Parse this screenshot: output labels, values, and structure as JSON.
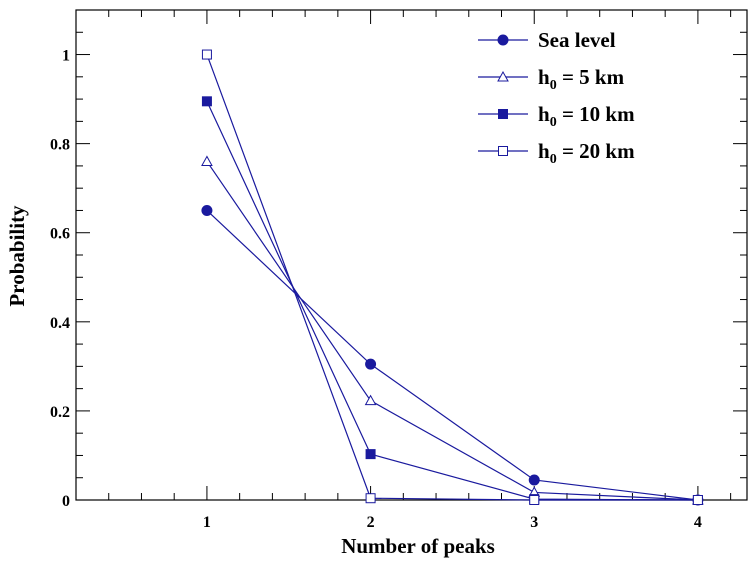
{
  "chart_data": {
    "type": "line",
    "xlabel": "Number of peaks",
    "ylabel": "Probability",
    "xlim": [
      0.2,
      4.3
    ],
    "ylim": [
      0,
      1.1
    ],
    "x_ticks": [
      1,
      2,
      3,
      4
    ],
    "x_tick_labels": [
      "1",
      "2",
      "3",
      "4"
    ],
    "y_ticks": [
      0,
      0.2,
      0.4,
      0.6,
      0.8,
      1
    ],
    "y_tick_labels": [
      "0",
      "0.2",
      "0.4",
      "0.6",
      "0.8",
      "1"
    ],
    "grid": false,
    "legend_position": "top-right",
    "line_color": "#1a1a9e",
    "x": [
      1,
      2,
      3,
      4
    ],
    "series": [
      {
        "name": "Sea level",
        "marker": "filled-circle",
        "values": [
          0.65,
          0.305,
          0.045,
          0.0
        ]
      },
      {
        "name": "h0 = 5 km",
        "name_parts": {
          "h": "h",
          "sub": "0",
          "rest": " = 5 km"
        },
        "marker": "open-triangle",
        "values": [
          0.76,
          0.223,
          0.017,
          0.0
        ]
      },
      {
        "name": "h0 = 10 km",
        "name_parts": {
          "h": "h",
          "sub": "0",
          "rest": " = 10 km"
        },
        "marker": "filled-square",
        "values": [
          0.895,
          0.103,
          0.002,
          0.0
        ]
      },
      {
        "name": "h0 = 20 km",
        "name_parts": {
          "h": "h",
          "sub": "0",
          "rest": " = 20 km"
        },
        "marker": "open-square",
        "values": [
          1.0,
          0.004,
          0.0,
          0.0
        ]
      }
    ]
  }
}
